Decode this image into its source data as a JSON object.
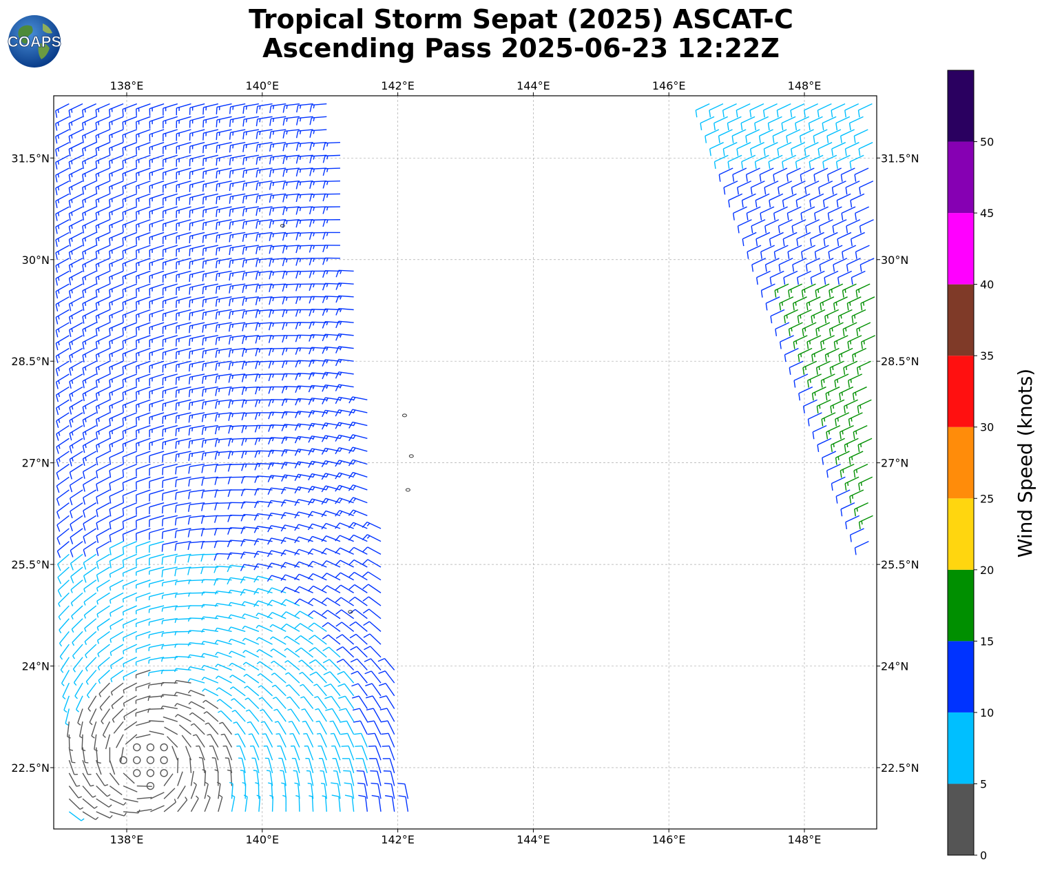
{
  "header": {
    "title_line1": "Tropical Storm Sepat (2025) ASCAT-C",
    "title_line2": "Ascending Pass 2025-06-23 12:22Z",
    "logo_text": "COAPS"
  },
  "map": {
    "lon_range": [
      137.0,
      149.1
    ],
    "lat_range": [
      21.6,
      32.4
    ],
    "lon_ticks": [
      138,
      140,
      142,
      144,
      146,
      148
    ],
    "lon_tick_labels": [
      "138°E",
      "140°E",
      "142°E",
      "144°E",
      "146°E",
      "148°E"
    ],
    "lat_ticks": [
      22.5,
      24,
      25.5,
      27,
      28.5,
      30,
      31.5
    ],
    "lat_tick_labels": [
      "22.5°N",
      "24°N",
      "25.5°N",
      "27°N",
      "28.5°N",
      "30°N",
      "31.5°N"
    ],
    "gridlines": true,
    "swaths": [
      {
        "name": "west",
        "lon_start_top": 137.1,
        "lon_end_top": 141.5,
        "lon_start_bottom": 137.1,
        "lon_end_bottom": 142.2
      },
      {
        "name": "east",
        "lon_start_top": 146.6,
        "lon_end_top": 149.1,
        "lon_start_bottom": 149.1,
        "lon_end_bottom": 149.1
      }
    ],
    "islands": [
      {
        "lon": 142.1,
        "lat": 27.7
      },
      {
        "lon": 142.2,
        "lat": 27.1
      },
      {
        "lon": 142.15,
        "lat": 26.6
      },
      {
        "lon": 141.3,
        "lat": 24.8
      },
      {
        "lon": 140.3,
        "lat": 30.5
      }
    ]
  },
  "colorbar": {
    "label": "Wind Speed (knots)",
    "tick_labels": [
      "0",
      "5",
      "10",
      "15",
      "20",
      "25",
      "30",
      "35",
      "40",
      "45",
      "50"
    ],
    "bins": [
      {
        "min": 0,
        "max": 5,
        "color": "#555555"
      },
      {
        "min": 5,
        "max": 10,
        "color": "#00bfff"
      },
      {
        "min": 10,
        "max": 15,
        "color": "#0033ff"
      },
      {
        "min": 15,
        "max": 20,
        "color": "#008f00"
      },
      {
        "min": 20,
        "max": 25,
        "color": "#ffd60f"
      },
      {
        "min": 25,
        "max": 30,
        "color": "#ff8c0a"
      },
      {
        "min": 30,
        "max": 35,
        "color": "#ff1010"
      },
      {
        "min": 35,
        "max": 40,
        "color": "#7f3a28"
      },
      {
        "min": 40,
        "max": 45,
        "color": "#ff00ff"
      },
      {
        "min": 45,
        "max": 50,
        "color": "#8600b3"
      },
      {
        "min": 50,
        "max": 55,
        "color": "#2a0060"
      }
    ]
  }
}
